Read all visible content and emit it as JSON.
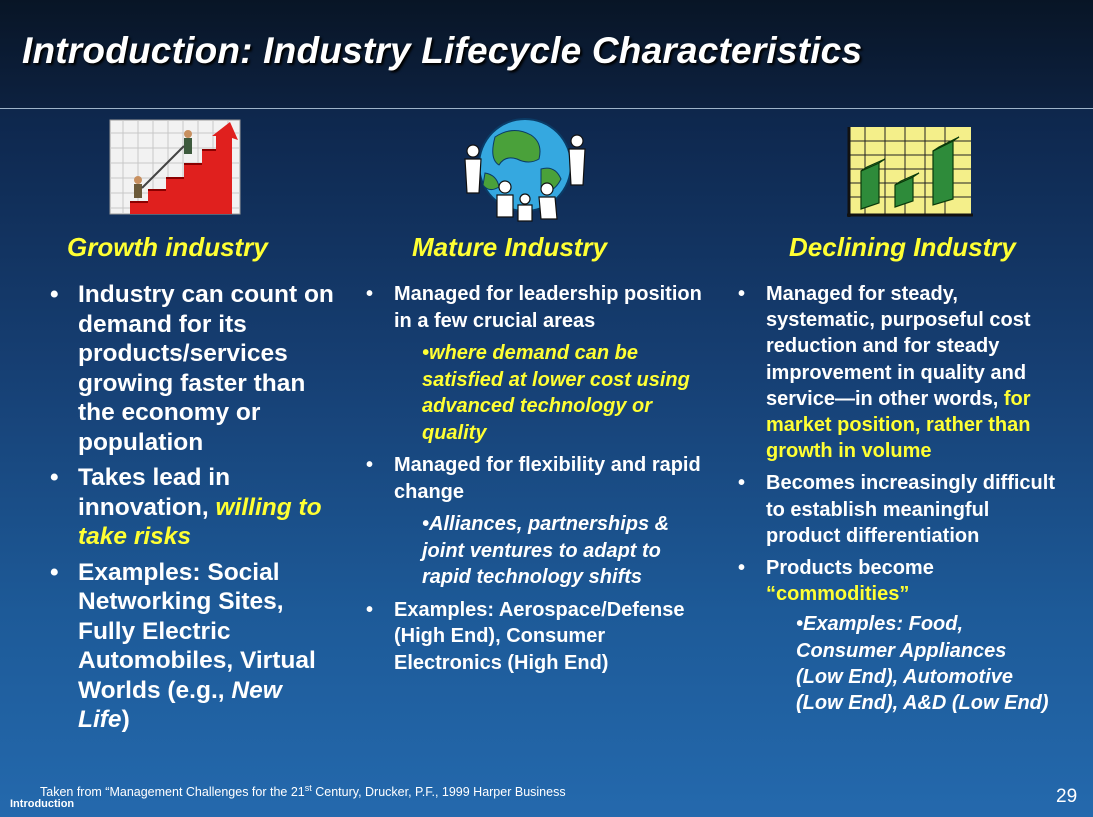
{
  "slide": {
    "title": "Introduction: Industry Lifecycle Characteristics",
    "page_number": "29",
    "section_label": "Introduction"
  },
  "footer": {
    "source_prefix": "Taken from “Management Challenges for the 21",
    "source_sup": "st",
    "source_suffix": " Century, Drucker, P.F., 1999 Harper Business"
  },
  "columns": {
    "growth": {
      "heading": "Growth industry",
      "b1": "Industry can count on demand for its products/services growing faster than the economy or population",
      "b2_pre": "Takes lead in innovation, ",
      "b2_highlight": "willing to take risks",
      "b3_pre": "Examples: Social Networking Sites, Fully Electric Automobiles, Virtual Worlds (e.g., ",
      "b3_italic": "New Life",
      "b3_post": ")"
    },
    "mature": {
      "heading": "Mature Industry",
      "b1": "Managed for leadership position in a few crucial areas",
      "b1_sub": "where demand can be satisfied at lower cost using advanced technology or quality",
      "b2": "Managed for flexibility and rapid change",
      "b2_sub": "Alliances, partnerships & joint ventures to adapt to rapid technology shifts",
      "b3": "Examples: Aerospace/Defense (High End), Consumer Electronics (High End)"
    },
    "declining": {
      "heading": "Declining Industry",
      "b1_pre": "Managed for steady, systematic, purposeful cost reduction and for steady improvement in quality and service—in other words, ",
      "b1_highlight": "for market position, rather than growth in volume",
      "b2": "Becomes increasingly difficult to establish meaningful product differentiation",
      "b3_pre": "Products become ",
      "b3_highlight": "“commodities”",
      "b3_sub": "Examples: Food, Consumer Appliances (Low End), Automotive (Low End), A&D (Low End)"
    }
  },
  "icons": {
    "growth": "rising-stairs-clipart-icon",
    "mature": "globe-with-people-clipart-icon",
    "declining": "money-bar-chart-clipart-icon"
  },
  "colors": {
    "highlight": "#ffff33",
    "background_top": "#0b1d3a",
    "background_bottom": "#2469ad"
  }
}
